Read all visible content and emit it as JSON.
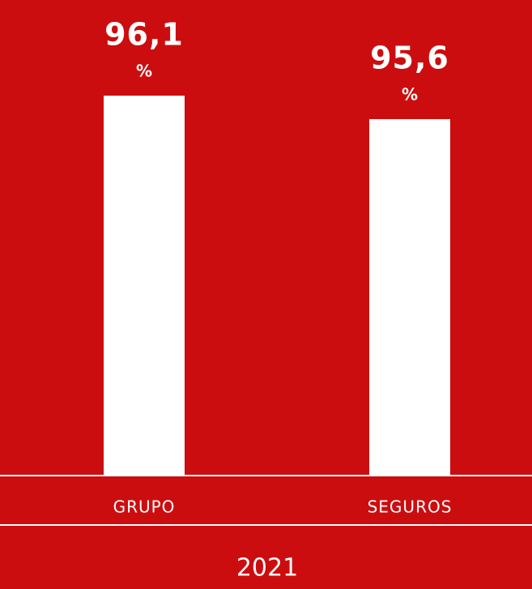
{
  "chart_data": {
    "type": "bar",
    "categories": [
      "GRUPO",
      "SEGUROS"
    ],
    "values": [
      96.1,
      95.6
    ],
    "value_labels": [
      "96,1",
      "95,6"
    ],
    "unit": "%",
    "xlabel": "2021",
    "color": "#ffffff",
    "background": "#cc0d0f",
    "ylim": [
      88,
      97
    ]
  }
}
